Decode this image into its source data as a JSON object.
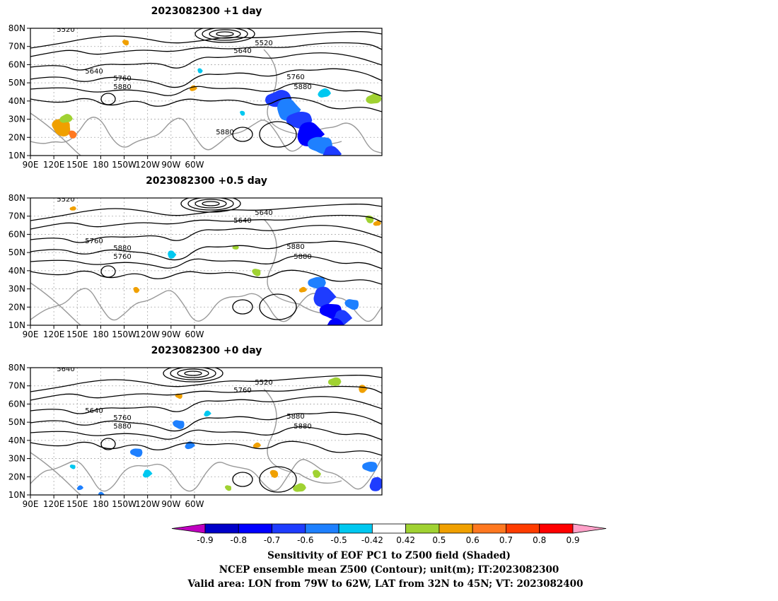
{
  "panels": [
    {
      "title": "2023082300  +1 day",
      "contour_labels": [
        "5520",
        "5520",
        "5640",
        "5640",
        "5760",
        "5880",
        "5760",
        "5880",
        "5880"
      ]
    },
    {
      "title": "2023082300  +0.5 day",
      "contour_labels": [
        "5520",
        "5640",
        "5640",
        "5760",
        "5880",
        "5760",
        "5880",
        "5880"
      ]
    },
    {
      "title": "2023082300  +0 day",
      "contour_labels": [
        "5640",
        "5520",
        "5760",
        "5640",
        "5760",
        "5880",
        "5880",
        "5880"
      ]
    }
  ],
  "lat_ticks": [
    "80N",
    "70N",
    "60N",
    "50N",
    "40N",
    "30N",
    "20N",
    "10N"
  ],
  "lon_ticks": [
    "90E",
    "120E",
    "150E",
    "180",
    "150W",
    "120W",
    "90W",
    "60W"
  ],
  "colorbar": {
    "labels": [
      "-0.9",
      "-0.8",
      "-0.7",
      "-0.6",
      "-0.5",
      "-0.42",
      "0.42",
      "0.5",
      "0.6",
      "0.7",
      "0.8",
      "0.9"
    ],
    "colors": [
      "#c000c0",
      "#0000c8",
      "#0000ff",
      "#1e3cff",
      "#1e80ff",
      "#00c8f0",
      "#ffffff",
      "#a0d232",
      "#f0a000",
      "#ff7820",
      "#ff3c00",
      "#ff0000",
      "#ffa0c8"
    ]
  },
  "caption": {
    "line1": "Sensitivity of EOF PC1 to Z500 field (Shaded)",
    "line2": "NCEP ensemble mean Z500 (Contour); unit(m); IT:2023082300",
    "line3": "Valid area: LON from 79W to 62W, LAT from 32N to 45N; VT: 2023082400"
  }
}
